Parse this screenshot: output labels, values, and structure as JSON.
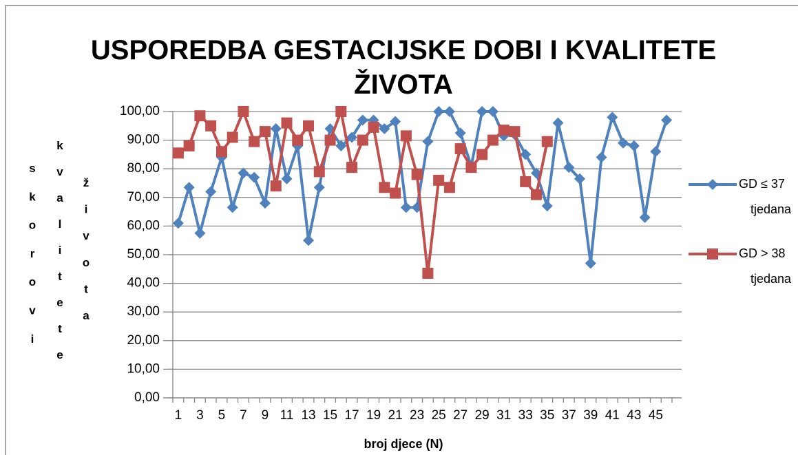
{
  "chart_data": {
    "type": "line",
    "title": "USPOREDBA GESTACIJSKE DOBI I KVALITETE ŽIVOTA",
    "x_label": "broj djece (N)",
    "y_label": [
      "skorovi",
      "kvalitete",
      "života"
    ],
    "categories": [
      "1",
      null,
      "3",
      null,
      "5",
      null,
      "7",
      null,
      "9",
      null,
      "11",
      null,
      "13",
      null,
      "15",
      null,
      "17",
      null,
      "19",
      null,
      "21",
      null,
      "23",
      null,
      "25",
      null,
      "27",
      null,
      "29",
      null,
      "31",
      null,
      "33",
      null,
      "35",
      null,
      "37",
      null,
      "39",
      null,
      "41",
      null,
      "43",
      null,
      "45",
      null
    ],
    "series": [
      {
        "name": "GD ≤ 37 tjedana",
        "color": "#4f81bd",
        "marker": "diamond",
        "values": [
          61,
          73.5,
          57.5,
          72,
          84,
          66.5,
          78.5,
          77,
          68,
          94,
          76.5,
          88,
          55,
          73.5,
          94,
          88,
          91,
          97,
          97,
          94,
          96.5,
          66.5,
          66.5,
          89.5,
          100,
          100,
          92.5,
          81,
          100,
          100,
          91.5,
          92,
          85,
          78.5,
          67,
          96,
          80.5,
          76.5,
          47,
          84,
          98,
          89,
          88,
          63,
          86,
          97
        ]
      },
      {
        "name": "GD > 38 tjedana",
        "color": "#c0504d",
        "marker": "square",
        "values": [
          85.5,
          88,
          98.5,
          95,
          86,
          91,
          100,
          89.5,
          93,
          74,
          96,
          90,
          95,
          79,
          90,
          100,
          80.5,
          90,
          94.5,
          73.5,
          71.5,
          91.5,
          78,
          43.5,
          76,
          73.5,
          87,
          80.5,
          85,
          90,
          93.5,
          93,
          75.5,
          71,
          89.5,
          null,
          null,
          null,
          null,
          null,
          null,
          null,
          null,
          null,
          null,
          null
        ]
      }
    ],
    "ylim": [
      0,
      100
    ],
    "yticks": [
      {
        "value": 0,
        "label": "0,00"
      },
      {
        "value": 10,
        "label": "10,00"
      },
      {
        "value": 20,
        "label": "20,00"
      },
      {
        "value": 30,
        "label": "30,00"
      },
      {
        "value": 40,
        "label": "40,00"
      },
      {
        "value": 50,
        "label": "50,00"
      },
      {
        "value": 60,
        "label": "60,00"
      },
      {
        "value": 70,
        "label": "70,00"
      },
      {
        "value": 80,
        "label": "80,00"
      },
      {
        "value": 90,
        "label": "90,00"
      },
      {
        "value": 100,
        "label": "100,00"
      }
    ],
    "grid": true,
    "legend": "right"
  }
}
